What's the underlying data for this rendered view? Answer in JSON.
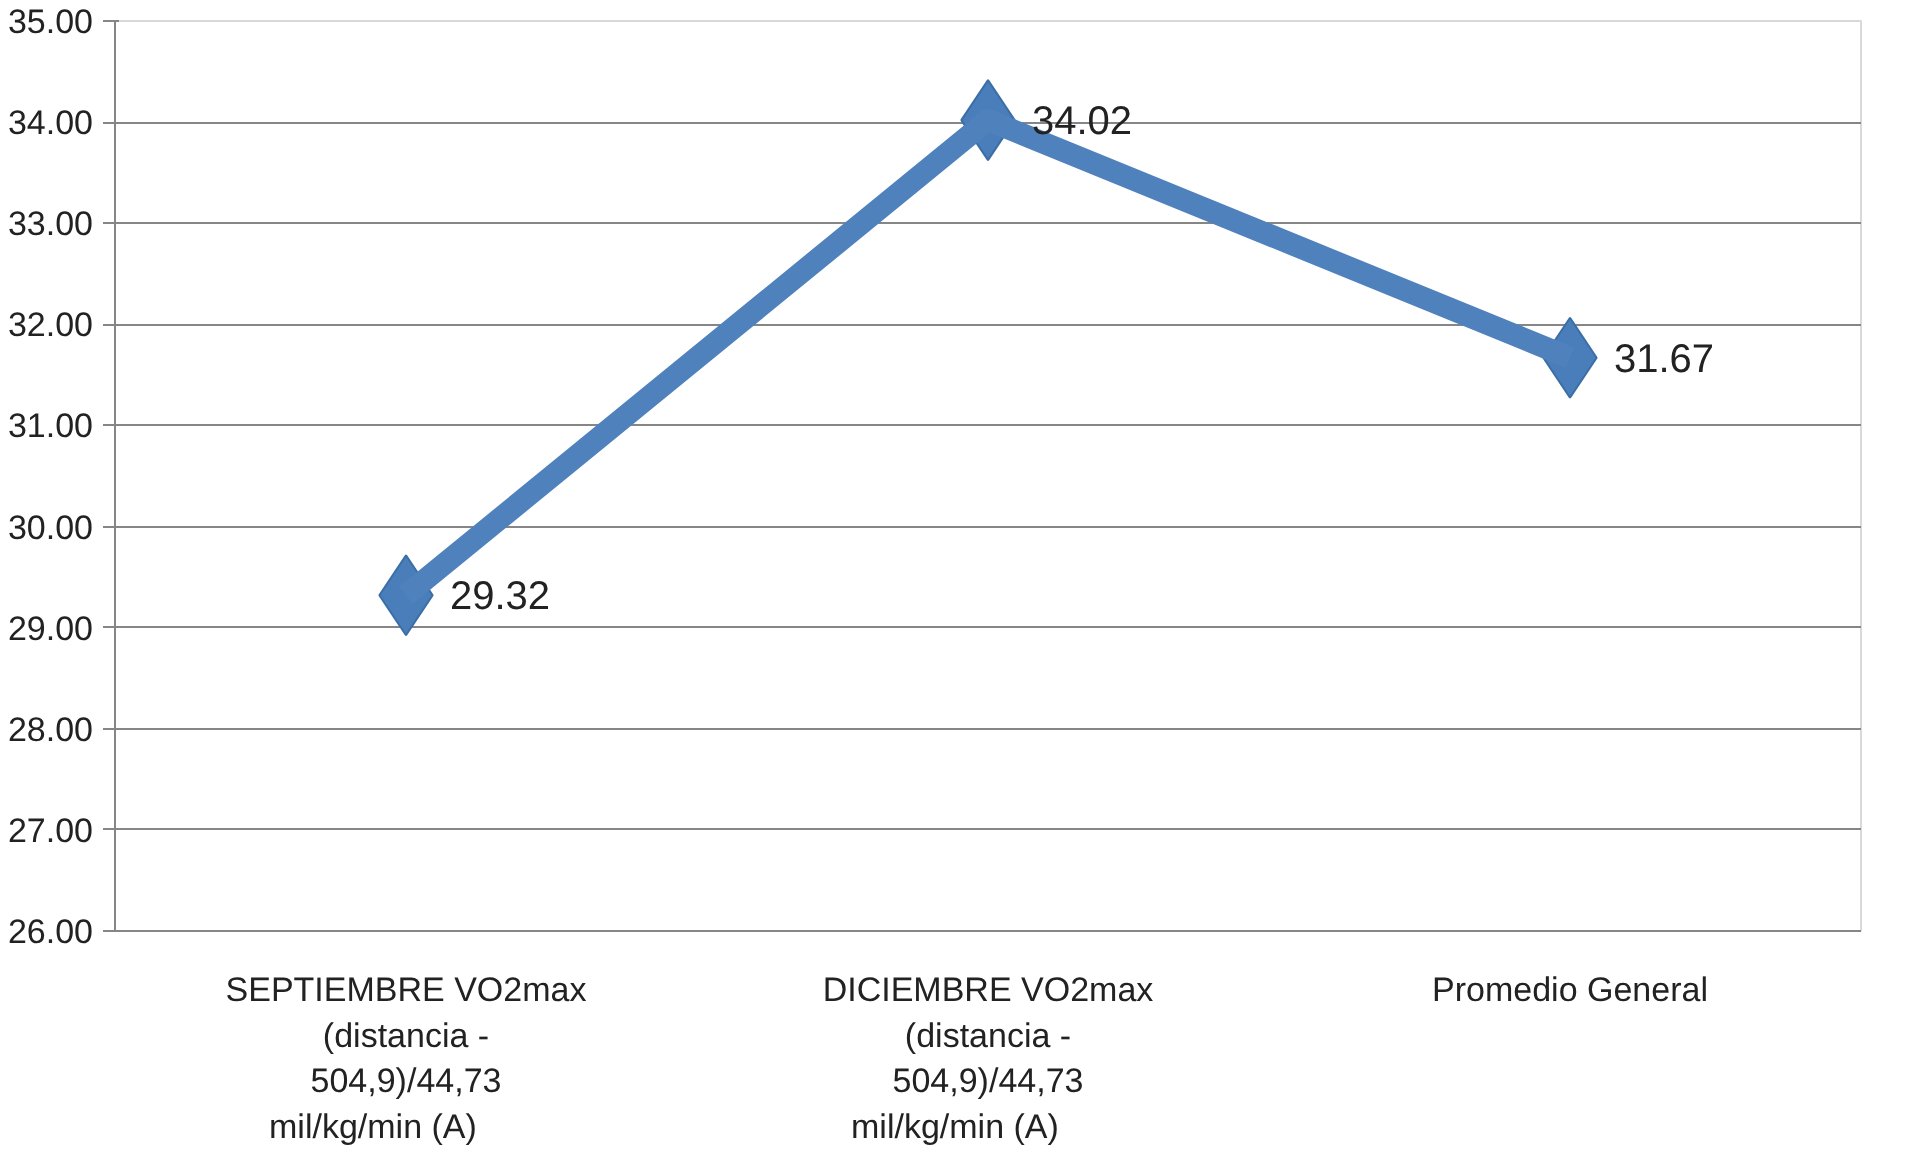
{
  "chart_data": {
    "type": "line",
    "categories": [
      "SEPTIEMBRE VO2max\n(distancia -\n504,9)/44,73\nmil/kg/min        (A)",
      "DICIEMBRE VO2max\n(distancia -\n504,9)/44,73\nmil/kg/min        (A)",
      "Promedio General"
    ],
    "series": [
      {
        "color": "#4f81bd",
        "values": [
          29.32,
          34.02,
          31.67
        ]
      }
    ],
    "ylim": [
      26,
      35
    ],
    "yticks": [
      {
        "value": 26,
        "label": "26.00"
      },
      {
        "value": 27,
        "label": "27.00"
      },
      {
        "value": 28,
        "label": "28.00"
      },
      {
        "value": 29,
        "label": "29.00"
      },
      {
        "value": 30,
        "label": "30.00"
      },
      {
        "value": 31,
        "label": "31.00"
      },
      {
        "value": 32,
        "label": "32.00"
      },
      {
        "value": 33,
        "label": "33.00"
      },
      {
        "value": 34,
        "label": "34.00"
      },
      {
        "value": 35,
        "label": "35.00"
      }
    ],
    "grid": "y",
    "marker": "diamond",
    "line_style": "solid",
    "data_labels": true
  }
}
